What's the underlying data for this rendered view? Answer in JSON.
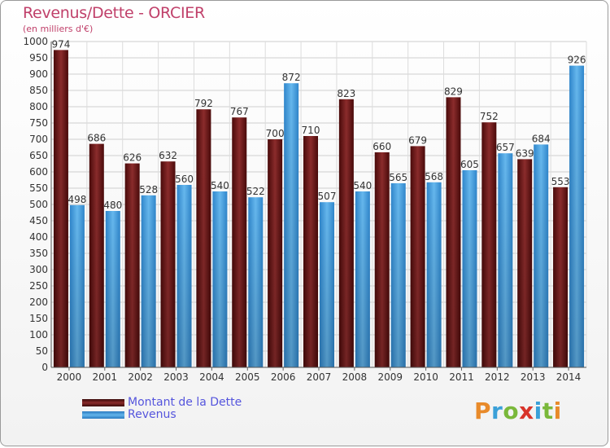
{
  "header": {
    "title": "Revenus/Dette - ORCIER",
    "subtitle": "(en milliers d'€)"
  },
  "legend": {
    "items": [
      {
        "label": "Montant de la Dette",
        "color": "#7a1e1e"
      },
      {
        "label": "Revenus",
        "color": "#4ea6e2"
      }
    ]
  },
  "logo": {
    "text": "Proxiti",
    "letters": [
      {
        "ch": "P",
        "color": "#e88a2a"
      },
      {
        "ch": "r",
        "color": "#3aa0d8"
      },
      {
        "ch": "o",
        "color": "#7ab83a"
      },
      {
        "ch": "x",
        "color": "#d8342a"
      },
      {
        "ch": "i",
        "color": "#3aa0d8"
      },
      {
        "ch": "t",
        "color": "#7ab83a"
      },
      {
        "ch": "i",
        "color": "#e88a2a"
      }
    ]
  },
  "chart_data": {
    "type": "bar",
    "title": "Revenus/Dette - ORCIER",
    "subtitle": "(en milliers d'€)",
    "categories": [
      "2000",
      "2001",
      "2002",
      "2003",
      "2004",
      "2005",
      "2006",
      "2007",
      "2008",
      "2009",
      "2010",
      "2011",
      "2012",
      "2013",
      "2014"
    ],
    "series": [
      {
        "name": "Montant de la Dette",
        "color": "#7a1e1e",
        "values": [
          974,
          686,
          626,
          632,
          792,
          767,
          700,
          710,
          823,
          660,
          679,
          829,
          752,
          639,
          553
        ]
      },
      {
        "name": "Revenus",
        "color": "#4ea6e2",
        "values": [
          498,
          480,
          528,
          560,
          540,
          522,
          872,
          507,
          540,
          565,
          568,
          605,
          657,
          684,
          926
        ]
      }
    ],
    "ylim": [
      0,
      1000
    ],
    "ytick_step": 50,
    "grid": true,
    "legend_position": "bottom-left"
  }
}
